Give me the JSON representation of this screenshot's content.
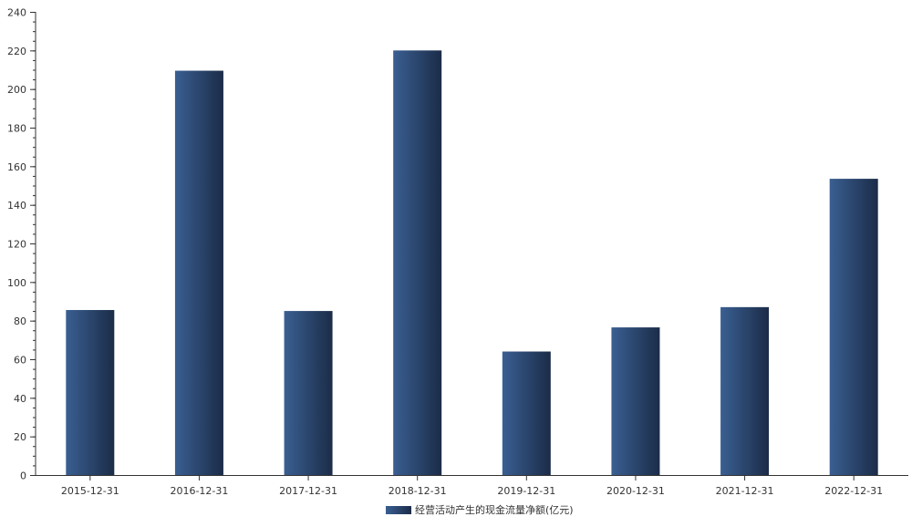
{
  "chart_data": {
    "type": "bar",
    "categories": [
      "2015-12-31",
      "2016-12-31",
      "2017-12-31",
      "2018-12-31",
      "2019-12-31",
      "2020-12-31",
      "2021-12-31",
      "2022-12-31"
    ],
    "series": [
      {
        "name": "经营活动产生的现金流量净额(亿元)",
        "values": [
          85.5,
          209.5,
          85,
          220,
          64,
          76.5,
          87,
          153.5
        ]
      }
    ],
    "ylim": [
      0,
      240
    ],
    "yticks": [
      0,
      20,
      40,
      60,
      80,
      100,
      120,
      140,
      160,
      180,
      200,
      220,
      240
    ],
    "grid": false,
    "legend_position": "bottom-center",
    "colors": {
      "bar_light": "#3a5f92",
      "bar_dark": "#1b2c48",
      "axis": "#333333"
    }
  }
}
